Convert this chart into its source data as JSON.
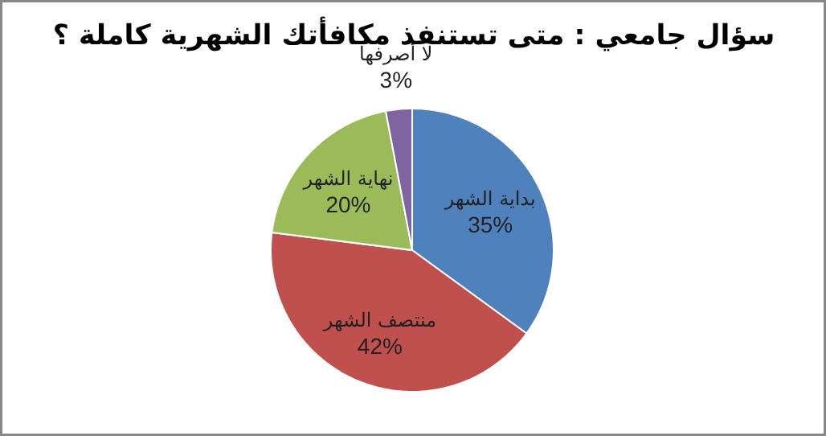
{
  "chart_data": {
    "type": "pie",
    "title": "سؤال جامعي : متى تستنفذ مكافأتك الشهرية كاملة ؟",
    "categories": [
      "بداية الشهر",
      "منتصف الشهر",
      "نهاية الشهر",
      "لا أصرفها"
    ],
    "values": [
      35,
      42,
      20,
      3
    ],
    "value_labels": [
      "35%",
      "42%",
      "20%",
      "3%"
    ],
    "colors": [
      "#4f81bd",
      "#c0504d",
      "#9bbb59",
      "#8064a2"
    ]
  }
}
